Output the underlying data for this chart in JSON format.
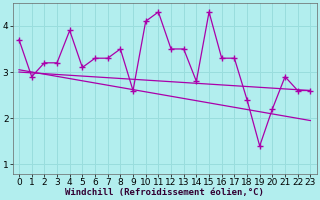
{
  "xlabel": "Windchill (Refroidissement éolien,°C)",
  "background_color": "#b2eeee",
  "line_color": "#aa00aa",
  "x": [
    0,
    1,
    2,
    3,
    4,
    5,
    6,
    7,
    8,
    9,
    10,
    11,
    12,
    13,
    14,
    15,
    16,
    17,
    18,
    19,
    20,
    21,
    22,
    23
  ],
  "line1": [
    3.7,
    2.9,
    3.2,
    3.2,
    3.9,
    3.1,
    3.3,
    3.3,
    3.5,
    2.6,
    4.1,
    4.3,
    3.5,
    3.5,
    2.8,
    4.3,
    3.3,
    3.3,
    2.4,
    1.4,
    2.2,
    2.9,
    2.6,
    2.6
  ],
  "line2_x": [
    0,
    23
  ],
  "line2_y": [
    3.0,
    2.6
  ],
  "line3_x": [
    0,
    23
  ],
  "line3_y": [
    3.05,
    1.95
  ],
  "ylim": [
    0.8,
    4.5
  ],
  "xlim": [
    -0.5,
    23.5
  ],
  "grid_color": "#99dddd",
  "xticks": [
    0,
    1,
    2,
    3,
    4,
    5,
    6,
    7,
    8,
    9,
    10,
    11,
    12,
    13,
    14,
    15,
    16,
    17,
    18,
    19,
    20,
    21,
    22,
    23
  ],
  "yticks": [
    1,
    2,
    3,
    4
  ],
  "xlabel_fontsize": 6.5,
  "tick_fontsize": 6.5
}
